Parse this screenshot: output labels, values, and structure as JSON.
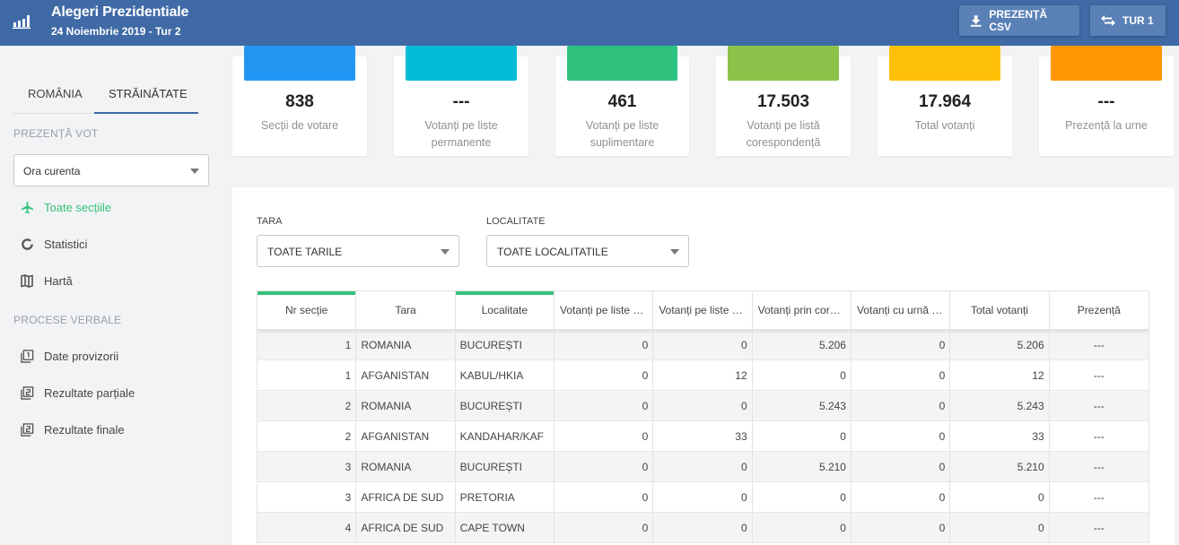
{
  "header": {
    "title": "Alegeri Prezidentiale",
    "subtitle": "24 Noiembrie 2019 - Tur 2",
    "csv_button": "PREZENȚĂ CSV",
    "tur_button": "TUR 1",
    "color": "#3f6aa6"
  },
  "sidebar": {
    "tab_ro": "ROMÂNIA",
    "tab_str": "STRĂINĂTATE",
    "section_vote": "PREZENȚĂ VOT",
    "time_select": "Ora curenta",
    "nav": [
      {
        "label": "Toate secțiile",
        "icon": "plane-icon",
        "active": true
      },
      {
        "label": "Statistici",
        "icon": "donut-icon"
      },
      {
        "label": "Hartă",
        "icon": "map-icon"
      }
    ],
    "section_pv": "PROCESE VERBALE",
    "pv": [
      {
        "label": "Date provizorii",
        "icon": "doc-1-icon"
      },
      {
        "label": "Rezultate parțiale",
        "icon": "doc-2-icon"
      },
      {
        "label": "Rezultate finale",
        "icon": "doc-2-icon"
      }
    ]
  },
  "cards": [
    {
      "value": "838",
      "label": "Secții de votare",
      "color": "#2196f3"
    },
    {
      "value": "---",
      "label": "Votanți pe liste permanente",
      "color": "#00bcd4"
    },
    {
      "value": "461",
      "label": "Votanți pe liste suplimentare",
      "color": "#2ec27e"
    },
    {
      "value": "17.503",
      "label": "Votanți pe listă corespondență",
      "color": "#8bc34a"
    },
    {
      "value": "17.964",
      "label": "Total votanți",
      "color": "#ffc107"
    },
    {
      "value": "---",
      "label": "Prezență la urne",
      "color": "#ff9800"
    }
  ],
  "filters": {
    "country_label": "TARA",
    "country_value": "TOATE TARILE",
    "locality_label": "LOCALITATE",
    "locality_value": "TOATE LOCALITATILE"
  },
  "table": {
    "headers": [
      "Nr secție",
      "Tara",
      "Localitate",
      "Votanți pe liste permanente",
      "Votanți pe liste suplimentare",
      "Votanți prin corespondență",
      "Votanți cu urnă mobilă",
      "Total votanți",
      "Prezență"
    ],
    "rows": [
      [
        "1",
        "ROMANIA",
        "BUCUREȘTI",
        "0",
        "0",
        "5.206",
        "0",
        "5.206",
        "---"
      ],
      [
        "1",
        "AFGANISTAN",
        "KABUL/HKIA",
        "0",
        "12",
        "0",
        "0",
        "12",
        "---"
      ],
      [
        "2",
        "ROMANIA",
        "BUCUREȘTI",
        "0",
        "0",
        "5.243",
        "0",
        "5.243",
        "---"
      ],
      [
        "2",
        "AFGANISTAN",
        "KANDAHAR/KAF",
        "0",
        "33",
        "0",
        "0",
        "33",
        "---"
      ],
      [
        "3",
        "ROMANIA",
        "BUCUREȘTI",
        "0",
        "0",
        "5.210",
        "0",
        "5.210",
        "---"
      ],
      [
        "3",
        "AFRICA DE SUD",
        "PRETORIA",
        "0",
        "0",
        "0",
        "0",
        "0",
        "---"
      ],
      [
        "4",
        "AFRICA DE SUD",
        "CAPE TOWN",
        "0",
        "0",
        "0",
        "0",
        "0",
        "---"
      ]
    ]
  }
}
